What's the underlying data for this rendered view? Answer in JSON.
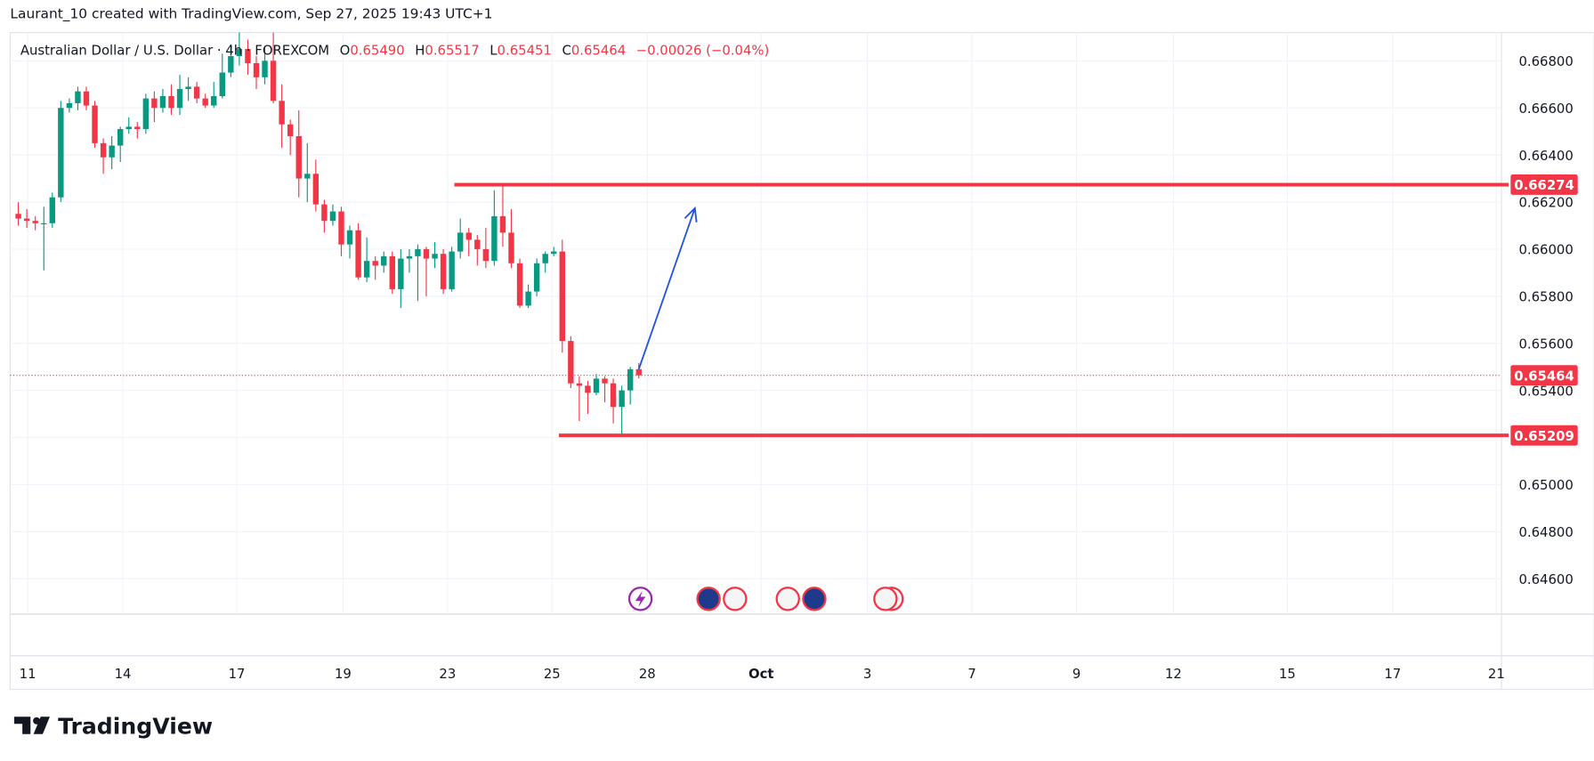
{
  "header": {
    "attribution": "Laurant_10 created with TradingView.com, Sep 27, 2025 19:43 UTC+1"
  },
  "logo": "TradingView",
  "chart_data": {
    "type": "candlestick",
    "legend": {
      "symbol": "Australian Dollar / U.S. Dollar · 4h · FOREXCOM",
      "open_label": "O",
      "open": "0.65490",
      "high_label": "H",
      "high": "0.65517",
      "low_label": "L",
      "low": "0.65451",
      "close_label": "C",
      "close": "0.65464",
      "change": "−0.00026 (−0.04%)"
    },
    "up_color": "#089981",
    "down_color": "#f23645",
    "open": [
      0.6615,
      0.6613,
      0.6612,
      0.6611,
      0.6611,
      0.6622,
      0.666,
      0.6662,
      0.6667,
      0.6661,
      0.6645,
      0.6639,
      0.6644,
      0.6651,
      0.6652,
      0.6651,
      0.6664,
      0.666,
      0.6665,
      0.666,
      0.6668,
      0.6669,
      0.6664,
      0.6661,
      0.6665,
      0.6675,
      0.6682,
      0.6685,
      0.6679,
      0.6673,
      0.668,
      0.6663,
      0.6653,
      0.6648,
      0.663,
      0.6632,
      0.6619,
      0.6612,
      0.6616,
      0.6602,
      0.6608,
      0.6588,
      0.6595,
      0.6593,
      0.6597,
      0.6583,
      0.6596,
      0.6597,
      0.66,
      0.6596,
      0.6598,
      0.6583,
      0.6599,
      0.6607,
      0.6604,
      0.66,
      0.6595,
      0.6614,
      0.6607,
      0.6594,
      0.6576,
      0.6582,
      0.6594,
      0.6598,
      0.6599,
      0.6561,
      0.6543,
      0.6542,
      0.6539,
      0.6545,
      0.6543,
      0.6533,
      0.654,
      0.6549
    ],
    "high": [
      0.662,
      0.6617,
      0.6614,
      0.6618,
      0.6624,
      0.6663,
      0.6664,
      0.6669,
      0.6669,
      0.6663,
      0.6647,
      0.6648,
      0.6652,
      0.6656,
      0.6654,
      0.6666,
      0.6667,
      0.6668,
      0.667,
      0.6674,
      0.6673,
      0.6671,
      0.6666,
      0.6671,
      0.6683,
      0.6687,
      0.6692,
      0.6689,
      0.6682,
      0.6686,
      0.6692,
      0.667,
      0.6655,
      0.6659,
      0.6645,
      0.6638,
      0.6621,
      0.6619,
      0.6618,
      0.661,
      0.6611,
      0.6605,
      0.6597,
      0.6599,
      0.6599,
      0.66,
      0.66,
      0.6602,
      0.6601,
      0.6603,
      0.66,
      0.6601,
      0.6613,
      0.6609,
      0.6606,
      0.6609,
      0.6625,
      0.6627,
      0.6617,
      0.6596,
      0.6585,
      0.6596,
      0.6599,
      0.6601,
      0.6604,
      0.6563,
      0.6546,
      0.6544,
      0.6547,
      0.6546,
      0.6545,
      0.6542,
      0.655,
      0.65517
    ],
    "low": [
      0.661,
      0.6609,
      0.6608,
      0.6591,
      0.6609,
      0.662,
      0.6658,
      0.6659,
      0.6659,
      0.6643,
      0.6632,
      0.6634,
      0.6637,
      0.6649,
      0.6647,
      0.6649,
      0.6654,
      0.6658,
      0.6657,
      0.6657,
      0.6663,
      0.6662,
      0.666,
      0.666,
      0.6664,
      0.6673,
      0.6678,
      0.6674,
      0.6668,
      0.667,
      0.6662,
      0.6643,
      0.664,
      0.6622,
      0.662,
      0.6616,
      0.6607,
      0.661,
      0.6597,
      0.6596,
      0.6587,
      0.6586,
      0.6587,
      0.659,
      0.6581,
      0.6575,
      0.659,
      0.6578,
      0.658,
      0.6592,
      0.6581,
      0.6582,
      0.6596,
      0.6597,
      0.6593,
      0.6592,
      0.6593,
      0.6601,
      0.6592,
      0.6575,
      0.6575,
      0.658,
      0.659,
      0.6597,
      0.6556,
      0.6541,
      0.6527,
      0.653,
      0.6538,
      0.6535,
      0.6526,
      0.6521,
      0.6534,
      0.65451
    ],
    "close": [
      0.6613,
      0.6612,
      0.6611,
      0.6611,
      0.6622,
      0.666,
      0.6662,
      0.6667,
      0.6661,
      0.6645,
      0.6639,
      0.6644,
      0.6651,
      0.6652,
      0.6651,
      0.6664,
      0.666,
      0.6665,
      0.666,
      0.6668,
      0.6669,
      0.6664,
      0.6661,
      0.6665,
      0.6675,
      0.6682,
      0.6685,
      0.6679,
      0.6673,
      0.668,
      0.6663,
      0.6653,
      0.6648,
      0.663,
      0.6632,
      0.6619,
      0.6612,
      0.6616,
      0.6602,
      0.6608,
      0.6588,
      0.6595,
      0.6593,
      0.6597,
      0.6583,
      0.6596,
      0.6597,
      0.66,
      0.6596,
      0.6598,
      0.6583,
      0.6599,
      0.6607,
      0.6604,
      0.66,
      0.6595,
      0.6614,
      0.6607,
      0.6594,
      0.6576,
      0.6582,
      0.6594,
      0.6598,
      0.6599,
      0.6561,
      0.6543,
      0.6542,
      0.6539,
      0.6545,
      0.6543,
      0.6533,
      0.654,
      0.6549,
      0.65464
    ],
    "xlim": [
      -0.96,
      174.5
    ],
    "xticks": [
      {
        "value": 1.1,
        "label": "11"
      },
      {
        "value": 12.3,
        "label": "14"
      },
      {
        "value": 25.7,
        "label": "17"
      },
      {
        "value": 38.2,
        "label": "19"
      },
      {
        "value": 50.5,
        "label": "23"
      },
      {
        "value": 62.8,
        "label": "25"
      },
      {
        "value": 74.0,
        "label": "28"
      },
      {
        "value": 87.4,
        "label": "Oct"
      },
      {
        "value": 99.9,
        "label": "3"
      },
      {
        "value": 112.2,
        "label": "7"
      },
      {
        "value": 124.5,
        "label": "9"
      },
      {
        "value": 135.9,
        "label": "12"
      },
      {
        "value": 149.3,
        "label": "15"
      },
      {
        "value": 161.7,
        "label": "17"
      },
      {
        "value": 173.9,
        "label": "21"
      }
    ],
    "ylim": [
      0.6445,
      0.6692
    ],
    "yticks": [
      {
        "value": 0.646,
        "label": "0.64600"
      },
      {
        "value": 0.648,
        "label": "0.64800"
      },
      {
        "value": 0.65,
        "label": "0.65000"
      },
      {
        "value": 0.652,
        "label": "0.65200"
      },
      {
        "value": 0.654,
        "label": "0.65400"
      },
      {
        "value": 0.656,
        "label": "0.65600"
      },
      {
        "value": 0.658,
        "label": "0.65800"
      },
      {
        "value": 0.66,
        "label": "0.66000"
      },
      {
        "value": 0.662,
        "label": "0.66200"
      },
      {
        "value": 0.664,
        "label": "0.66400"
      },
      {
        "value": 0.666,
        "label": "0.66600"
      },
      {
        "value": 0.668,
        "label": "0.66800"
      }
    ],
    "grid": true,
    "levels": [
      {
        "value": 0.66274,
        "from": 51.3,
        "color": "#f23645"
      },
      {
        "value": 0.65209,
        "from": 63.6,
        "color": "#f23645"
      }
    ],
    "last_price": 0.65464,
    "arrow": {
      "x": [
        73,
        79.6
      ],
      "y": [
        0.6549,
        0.66174
      ],
      "color": "#1e53e5"
    }
  }
}
